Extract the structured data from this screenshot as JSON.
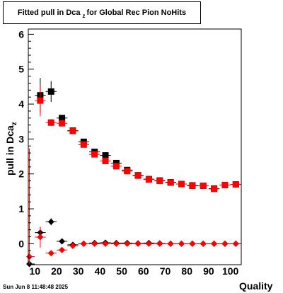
{
  "chart_data": {
    "type": "scatter",
    "title": {
      "prefix": "Fitted pull in Dca",
      "sub": "z",
      "suffix": "for Global Rec Pion NoHits"
    },
    "xlabel": "Quality",
    "ylabel": {
      "main": "pull in Dca",
      "sub": "z"
    },
    "xlim": [
      7,
      105
    ],
    "ylim": [
      -0.6,
      6.15
    ],
    "x_ticks": [
      10,
      20,
      30,
      40,
      50,
      60,
      70,
      80,
      90,
      100
    ],
    "y_ticks": [
      0,
      1,
      2,
      3,
      4,
      5,
      6
    ],
    "grid": false,
    "series": [
      {
        "marker": "square",
        "role": "sigma",
        "color": "#000000",
        "points": [
          {
            "x": 12.5,
            "y": 4.25,
            "err": 0.5
          },
          {
            "x": 17.5,
            "y": 4.36,
            "err": 0.3
          },
          {
            "x": 22.5,
            "y": 3.6,
            "err": 0.08
          },
          {
            "x": 27.5,
            "y": 3.24,
            "err": 0.05
          },
          {
            "x": 32.5,
            "y": 2.92,
            "err": 0.05
          },
          {
            "x": 37.5,
            "y": 2.63,
            "err": 0.04
          },
          {
            "x": 42.5,
            "y": 2.53,
            "err": 0.04
          },
          {
            "x": 47.5,
            "y": 2.31,
            "err": 0.04
          },
          {
            "x": 52.5,
            "y": 2.11,
            "err": 0.03
          },
          {
            "x": 57.5,
            "y": 1.96,
            "err": 0.03
          },
          {
            "x": 62.5,
            "y": 1.85,
            "err": 0.03
          },
          {
            "x": 67.5,
            "y": 1.81,
            "err": 0.03
          },
          {
            "x": 72.5,
            "y": 1.76,
            "err": 0.03
          },
          {
            "x": 77.5,
            "y": 1.71,
            "err": 0.03
          },
          {
            "x": 82.5,
            "y": 1.67,
            "err": 0.03
          },
          {
            "x": 87.5,
            "y": 1.66,
            "err": 0.03
          },
          {
            "x": 92.5,
            "y": 1.58,
            "err": 0.03
          },
          {
            "x": 97.5,
            "y": 1.68,
            "err": 0.03
          },
          {
            "x": 102.5,
            "y": 1.7,
            "err": 0.03
          }
        ]
      },
      {
        "marker": "diamond",
        "role": "mean",
        "color": "#000000",
        "points": [
          {
            "x": 7.5,
            "y": -0.58,
            "err": 0.05
          },
          {
            "x": 12.5,
            "y": 0.32,
            "err": 0.15
          },
          {
            "x": 17.5,
            "y": 0.63,
            "err": 0.1
          },
          {
            "x": 22.5,
            "y": 0.07,
            "err": 0.04
          },
          {
            "x": 27.5,
            "y": -0.03,
            "err": 0.03
          },
          {
            "x": 32.5,
            "y": 0.0,
            "err": 0.02
          },
          {
            "x": 37.5,
            "y": 0.02,
            "err": 0.02
          },
          {
            "x": 42.5,
            "y": 0.03,
            "err": 0.02
          },
          {
            "x": 47.5,
            "y": 0.02,
            "err": 0.02
          },
          {
            "x": 52.5,
            "y": 0.02,
            "err": 0.02
          },
          {
            "x": 57.5,
            "y": 0.01,
            "err": 0.02
          },
          {
            "x": 62.5,
            "y": 0.02,
            "err": 0.02
          },
          {
            "x": 67.5,
            "y": 0.01,
            "err": 0.02
          },
          {
            "x": 72.5,
            "y": 0.0,
            "err": 0.02
          },
          {
            "x": 77.5,
            "y": 0.0,
            "err": 0.02
          },
          {
            "x": 82.5,
            "y": 0.0,
            "err": 0.02
          },
          {
            "x": 87.5,
            "y": 0.0,
            "err": 0.02
          },
          {
            "x": 92.5,
            "y": 0.0,
            "err": 0.02
          },
          {
            "x": 97.5,
            "y": 0.0,
            "err": 0.02
          },
          {
            "x": 102.5,
            "y": 0.0,
            "err": 0.02
          }
        ]
      },
      {
        "marker": "square",
        "role": "sigma",
        "color": "#ff0000",
        "points": [
          {
            "x": 12.5,
            "y": 4.1,
            "err": 0.45
          },
          {
            "x": 17.5,
            "y": 3.47,
            "err": 0.1
          },
          {
            "x": 22.5,
            "y": 3.45,
            "err": 0.07
          },
          {
            "x": 27.5,
            "y": 3.23,
            "err": 0.05
          },
          {
            "x": 32.5,
            "y": 2.84,
            "err": 0.05
          },
          {
            "x": 37.5,
            "y": 2.56,
            "err": 0.04
          },
          {
            "x": 42.5,
            "y": 2.37,
            "err": 0.04
          },
          {
            "x": 47.5,
            "y": 2.22,
            "err": 0.04
          },
          {
            "x": 52.5,
            "y": 2.08,
            "err": 0.03
          },
          {
            "x": 57.5,
            "y": 1.95,
            "err": 0.03
          },
          {
            "x": 62.5,
            "y": 1.84,
            "err": 0.03
          },
          {
            "x": 67.5,
            "y": 1.8,
            "err": 0.03
          },
          {
            "x": 72.5,
            "y": 1.75,
            "err": 0.03
          },
          {
            "x": 77.5,
            "y": 1.71,
            "err": 0.03
          },
          {
            "x": 82.5,
            "y": 1.66,
            "err": 0.03
          },
          {
            "x": 87.5,
            "y": 1.66,
            "err": 0.03
          },
          {
            "x": 92.5,
            "y": 1.57,
            "err": 0.03
          },
          {
            "x": 97.5,
            "y": 1.68,
            "err": 0.03
          },
          {
            "x": 102.5,
            "y": 1.7,
            "err": 0.03
          }
        ]
      },
      {
        "marker": "diamond",
        "role": "mean",
        "color": "#ff0000",
        "points": [
          {
            "x": 7.5,
            "y": -0.37,
            "err": 3.1
          },
          {
            "x": 12.5,
            "y": 0.19,
            "err": 0.3
          },
          {
            "x": 17.5,
            "y": -0.27,
            "err": 0.05
          },
          {
            "x": 22.5,
            "y": -0.18,
            "err": 0.03
          },
          {
            "x": 27.5,
            "y": -0.06,
            "err": 0.02
          },
          {
            "x": 32.5,
            "y": 0.0,
            "err": 0.02
          },
          {
            "x": 37.5,
            "y": 0.0,
            "err": 0.02
          },
          {
            "x": 42.5,
            "y": 0.0,
            "err": 0.02
          },
          {
            "x": 47.5,
            "y": 0.0,
            "err": 0.02
          },
          {
            "x": 52.5,
            "y": 0.0,
            "err": 0.02
          },
          {
            "x": 57.5,
            "y": 0.0,
            "err": 0.02
          },
          {
            "x": 62.5,
            "y": 0.0,
            "err": 0.02
          },
          {
            "x": 67.5,
            "y": 0.0,
            "err": 0.02
          },
          {
            "x": 72.5,
            "y": 0.0,
            "err": 0.02
          },
          {
            "x": 77.5,
            "y": 0.0,
            "err": 0.02
          },
          {
            "x": 82.5,
            "y": 0.0,
            "err": 0.02
          },
          {
            "x": 87.5,
            "y": 0.0,
            "err": 0.02
          },
          {
            "x": 92.5,
            "y": 0.0,
            "err": 0.02
          },
          {
            "x": 97.5,
            "y": 0.0,
            "err": 0.02
          },
          {
            "x": 102.5,
            "y": 0.0,
            "err": 0.02
          }
        ]
      }
    ]
  },
  "footer": {
    "timestamp": "Sun Jun  8 11:48:48 2025"
  }
}
